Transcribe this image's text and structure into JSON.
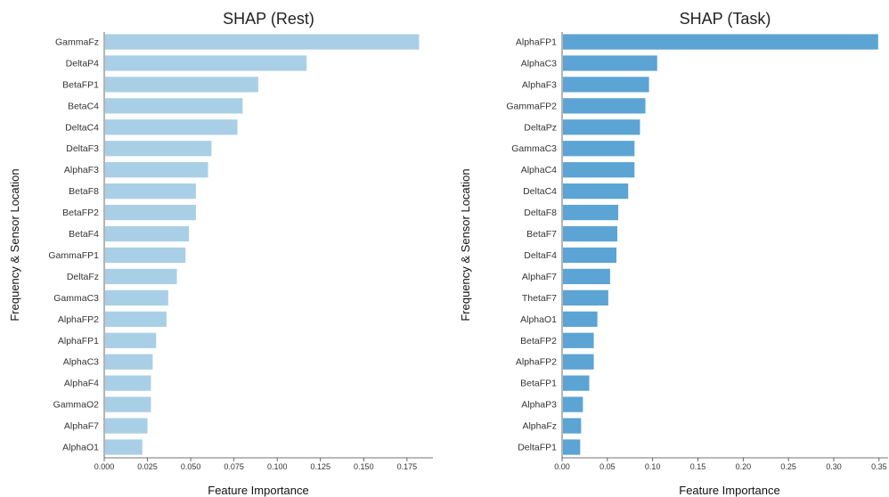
{
  "chart_data": [
    {
      "type": "bar",
      "orientation": "horizontal",
      "title": "SHAP (Rest)",
      "xlabel": "Feature Importance",
      "ylabel": "Frequency & Sensor Location",
      "xlim": [
        0,
        0.19
      ],
      "xticks": [
        "0.000",
        "0.025",
        "0.050",
        "0.075",
        "0.100",
        "0.125",
        "0.150",
        "0.175"
      ],
      "color": "#a9cfe6",
      "categories": [
        "GammaFz",
        "DeltaP4",
        "BetaFP1",
        "BetaC4",
        "DeltaC4",
        "DeltaF3",
        "AlphaF3",
        "BetaF8",
        "BetaFP2",
        "BetaF4",
        "GammaFP1",
        "DeltaFz",
        "GammaC3",
        "AlphaFP2",
        "AlphaFP1",
        "AlphaC3",
        "AlphaF4",
        "GammaO2",
        "AlphaF7",
        "AlphaO1"
      ],
      "values": [
        0.182,
        0.117,
        0.089,
        0.08,
        0.077,
        0.062,
        0.06,
        0.053,
        0.053,
        0.049,
        0.047,
        0.042,
        0.037,
        0.036,
        0.03,
        0.028,
        0.027,
        0.027,
        0.025,
        0.022
      ]
    },
    {
      "type": "bar",
      "orientation": "horizontal",
      "title": "SHAP (Task)",
      "xlabel": "Feature Importance",
      "ylabel": "Frequency & Sensor Location",
      "xlim": [
        0,
        0.36
      ],
      "xticks": [
        "0.00",
        "0.05",
        "0.10",
        "0.15",
        "0.20",
        "0.25",
        "0.30",
        "0.35"
      ],
      "color": "#5ba4d4",
      "categories": [
        "AlphaFP1",
        "AlphaC3",
        "AlphaF3",
        "GammaFP2",
        "DeltaPz",
        "GammaC3",
        "AlphaC4",
        "DeltaC4",
        "DeltaF8",
        "BetaF7",
        "DeltaF4",
        "AlphaF7",
        "ThetaF7",
        "AlphaO1",
        "BetaFP2",
        "AlphaFP2",
        "BetaFP1",
        "AlphaP3",
        "AlphaFz",
        "DeltaFP1"
      ],
      "values": [
        0.349,
        0.105,
        0.096,
        0.092,
        0.086,
        0.08,
        0.08,
        0.073,
        0.062,
        0.061,
        0.06,
        0.053,
        0.051,
        0.039,
        0.035,
        0.035,
        0.03,
        0.023,
        0.021,
        0.02
      ]
    }
  ]
}
